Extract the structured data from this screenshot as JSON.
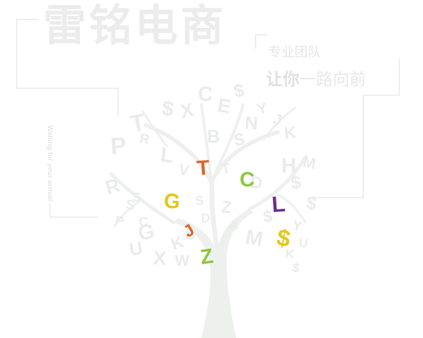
{
  "brand": {
    "title": "雷铭电商"
  },
  "slogan": {
    "line1": "专业团队",
    "line2_strong": "让你",
    "line2_rest": "一路向前"
  },
  "tagline": "Waiting for your arrival",
  "tree": {
    "grey_glyphs": [
      "T",
      "$",
      "X",
      "C",
      "E",
      "$",
      "N",
      "Y",
      "J",
      "K",
      "P",
      "R",
      "B",
      "S",
      "L",
      "H",
      "M",
      "$",
      "D",
      "R",
      "S",
      "K",
      "$",
      "W",
      "G",
      "P",
      "S",
      "X",
      "M",
      "A",
      "$",
      "Y",
      "U",
      "Z",
      "D",
      "V",
      "$",
      "K",
      "T",
      "C",
      "$",
      "S",
      "U"
    ],
    "colored_letters": [
      {
        "char": "T",
        "color": "#d9662b"
      },
      {
        "char": "C",
        "color": "#8cc63f"
      },
      {
        "char": "G",
        "color": "#e5c51a"
      },
      {
        "char": "L",
        "color": "#6b2e91"
      },
      {
        "char": "$",
        "color": "#e5c51a"
      },
      {
        "char": "J",
        "color": "#d9662b"
      },
      {
        "char": "Z",
        "color": "#8cc63f"
      }
    ]
  }
}
